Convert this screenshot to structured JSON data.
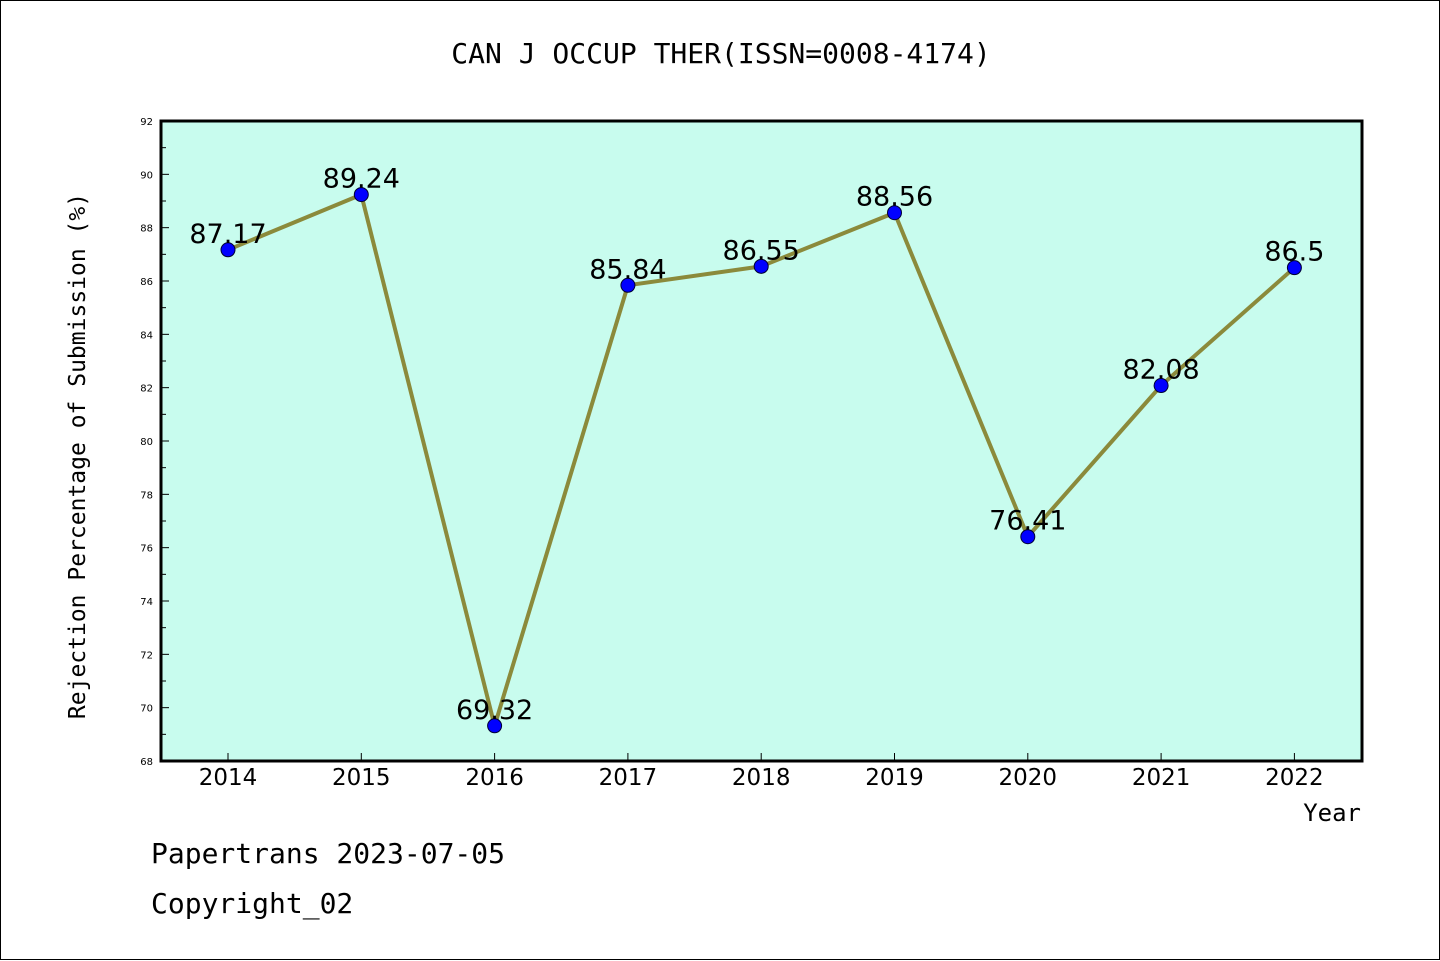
{
  "title": "CAN J OCCUP THER(ISSN=0008-4174)",
  "footer": {
    "line1": "Papertrans 2023-07-05",
    "line2": "Copyright_02"
  },
  "chart_data": {
    "type": "line",
    "title": "CAN J OCCUP THER(ISSN=0008-4174)",
    "xlabel": "Year",
    "ylabel": "Rejection Percentage of Submission (%)",
    "categories": [
      "2014",
      "2015",
      "2016",
      "2017",
      "2018",
      "2019",
      "2020",
      "2021",
      "2022"
    ],
    "values": [
      87.17,
      89.24,
      69.32,
      85.84,
      86.55,
      88.56,
      76.41,
      82.08,
      86.5
    ],
    "data_labels": [
      "87.17",
      "89.24",
      "69.32",
      "85.84",
      "86.55",
      "88.56",
      "76.41",
      "82.08",
      "86.5"
    ],
    "ylim": [
      68,
      92
    ],
    "yticks": [
      "68",
      "70",
      "72",
      "74",
      "76",
      "78",
      "80",
      "82",
      "84",
      "86",
      "88",
      "90",
      "92"
    ],
    "grid": false,
    "legend": "none",
    "colors": {
      "plot_background": "#c8fcee",
      "line": "#8b8a3b",
      "marker": "#0000ff"
    }
  }
}
